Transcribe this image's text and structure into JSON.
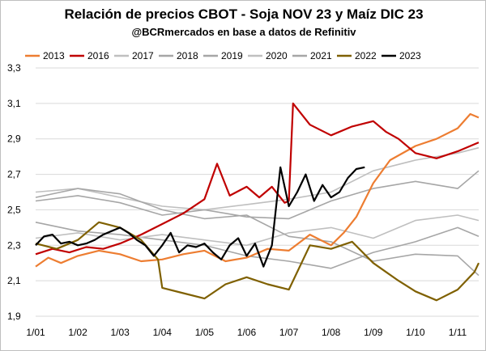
{
  "chart_data": {
    "type": "line",
    "title": "Relación de precios CBOT - Soja NOV 23 y Maíz DIC 23",
    "subtitle": "@BCRmercados en base a datos de Refinitiv",
    "xlabel": "",
    "ylabel": "",
    "ylim": [
      1.9,
      3.3
    ],
    "xlim": [
      0,
      10.5
    ],
    "y_ticks": [
      "1,9",
      "2,1",
      "2,3",
      "2,5",
      "2,7",
      "2,9",
      "3,1",
      "3,3"
    ],
    "y_tick_values": [
      1.9,
      2.1,
      2.3,
      2.5,
      2.7,
      2.9,
      3.1,
      3.3
    ],
    "x_ticks": [
      "1/01",
      "1/02",
      "1/03",
      "1/04",
      "1/05",
      "1/06",
      "1/07",
      "1/08",
      "1/09",
      "1/10",
      "1/11"
    ],
    "x_tick_values": [
      0,
      1,
      2,
      3,
      4,
      5,
      6,
      7,
      8,
      9,
      10
    ],
    "grid": "horizontal",
    "legend_position": "top",
    "series": [
      {
        "name": "2013",
        "color": "#ED7D31",
        "width": 2.2,
        "x": [
          0,
          0.3,
          0.6,
          1.0,
          1.5,
          2.0,
          2.5,
          3.0,
          3.5,
          4.0,
          4.5,
          5.0,
          5.5,
          6.0,
          6.5,
          7.0,
          7.3,
          7.6,
          8.0,
          8.4,
          9.0,
          9.5,
          10.0,
          10.3,
          10.5
        ],
        "values": [
          2.18,
          2.23,
          2.2,
          2.24,
          2.27,
          2.25,
          2.21,
          2.22,
          2.25,
          2.27,
          2.21,
          2.23,
          2.28,
          2.27,
          2.36,
          2.3,
          2.37,
          2.46,
          2.65,
          2.78,
          2.86,
          2.9,
          2.96,
          3.04,
          3.02
        ]
      },
      {
        "name": "2016",
        "color": "#C00000",
        "width": 2.2,
        "x": [
          0,
          0.4,
          0.8,
          1.2,
          1.6,
          2.0,
          2.5,
          3.0,
          3.5,
          4.0,
          4.3,
          4.6,
          5.0,
          5.3,
          5.6,
          5.9,
          6.0,
          6.1,
          6.5,
          7.0,
          7.5,
          8.0,
          8.3,
          8.6,
          9.0,
          9.5,
          10.0,
          10.5
        ],
        "values": [
          2.25,
          2.28,
          2.26,
          2.29,
          2.28,
          2.31,
          2.36,
          2.42,
          2.48,
          2.56,
          2.76,
          2.58,
          2.63,
          2.57,
          2.63,
          2.54,
          2.55,
          3.1,
          2.98,
          2.92,
          2.97,
          3.0,
          2.94,
          2.9,
          2.82,
          2.79,
          2.83,
          2.88
        ]
      },
      {
        "name": "2017",
        "color": "#BFBFBF",
        "width": 1.6,
        "x": [
          0,
          1,
          2,
          3,
          4,
          5,
          6,
          7,
          8,
          9,
          10,
          10.5
        ],
        "values": [
          2.6,
          2.62,
          2.57,
          2.52,
          2.5,
          2.53,
          2.56,
          2.6,
          2.72,
          2.78,
          2.82,
          2.85
        ]
      },
      {
        "name": "2018",
        "color": "#A6A6A6",
        "width": 1.6,
        "x": [
          0,
          1,
          2,
          3,
          4,
          5,
          6,
          7,
          8,
          9,
          10,
          10.5
        ],
        "values": [
          2.55,
          2.58,
          2.54,
          2.47,
          2.5,
          2.46,
          2.45,
          2.55,
          2.62,
          2.66,
          2.62,
          2.72
        ]
      },
      {
        "name": "2019",
        "color": "#A6A6A6",
        "width": 1.6,
        "x": [
          0,
          1,
          2,
          3,
          4,
          5,
          6,
          7,
          8,
          9,
          10,
          10.5
        ],
        "values": [
          2.43,
          2.38,
          2.36,
          2.33,
          2.3,
          2.24,
          2.21,
          2.17,
          2.26,
          2.32,
          2.4,
          2.35
        ]
      },
      {
        "name": "2020",
        "color": "#BFBFBF",
        "width": 1.6,
        "x": [
          0,
          1,
          2,
          3,
          4,
          5,
          6,
          7,
          8,
          9,
          10,
          10.5
        ],
        "values": [
          2.34,
          2.37,
          2.33,
          2.36,
          2.33,
          2.3,
          2.37,
          2.4,
          2.34,
          2.44,
          2.47,
          2.44
        ]
      },
      {
        "name": "2021",
        "color": "#A6A6A6",
        "width": 1.6,
        "x": [
          0,
          1,
          2,
          3,
          4,
          5,
          6,
          7,
          8,
          9,
          10,
          10.5
        ],
        "values": [
          2.57,
          2.62,
          2.59,
          2.5,
          2.45,
          2.47,
          2.35,
          2.32,
          2.21,
          2.25,
          2.24,
          2.13
        ]
      },
      {
        "name": "2022",
        "color": "#7F6000",
        "width": 2.2,
        "x": [
          0,
          0.5,
          1.0,
          1.5,
          2.0,
          2.5,
          2.9,
          3.0,
          3.5,
          4.0,
          4.5,
          5.0,
          5.5,
          6.0,
          6.5,
          7.0,
          7.5,
          8.0,
          8.3,
          8.6,
          9.0,
          9.5,
          10.0,
          10.4,
          10.5
        ],
        "values": [
          2.31,
          2.28,
          2.33,
          2.43,
          2.4,
          2.33,
          2.22,
          2.06,
          2.03,
          2.0,
          2.08,
          2.12,
          2.08,
          2.05,
          2.3,
          2.28,
          2.32,
          2.2,
          2.15,
          2.1,
          2.04,
          1.99,
          2.05,
          2.15,
          2.2
        ]
      },
      {
        "name": "2023",
        "color": "#000000",
        "width": 2.2,
        "x": [
          0,
          0.2,
          0.4,
          0.6,
          0.8,
          1.0,
          1.2,
          1.4,
          1.6,
          1.8,
          2.0,
          2.2,
          2.4,
          2.6,
          2.8,
          3.0,
          3.2,
          3.4,
          3.6,
          3.8,
          4.0,
          4.2,
          4.4,
          4.6,
          4.8,
          5.0,
          5.2,
          5.4,
          5.6,
          5.8,
          6.0,
          6.2,
          6.4,
          6.6,
          6.8,
          7.0,
          7.2,
          7.4,
          7.6,
          7.8
        ],
        "values": [
          2.3,
          2.35,
          2.36,
          2.31,
          2.32,
          2.3,
          2.31,
          2.33,
          2.36,
          2.38,
          2.4,
          2.37,
          2.33,
          2.3,
          2.24,
          2.3,
          2.37,
          2.26,
          2.3,
          2.29,
          2.31,
          2.26,
          2.22,
          2.3,
          2.34,
          2.24,
          2.31,
          2.18,
          2.3,
          2.74,
          2.52,
          2.6,
          2.7,
          2.55,
          2.64,
          2.57,
          2.6,
          2.68,
          2.73,
          2.74
        ]
      }
    ]
  }
}
